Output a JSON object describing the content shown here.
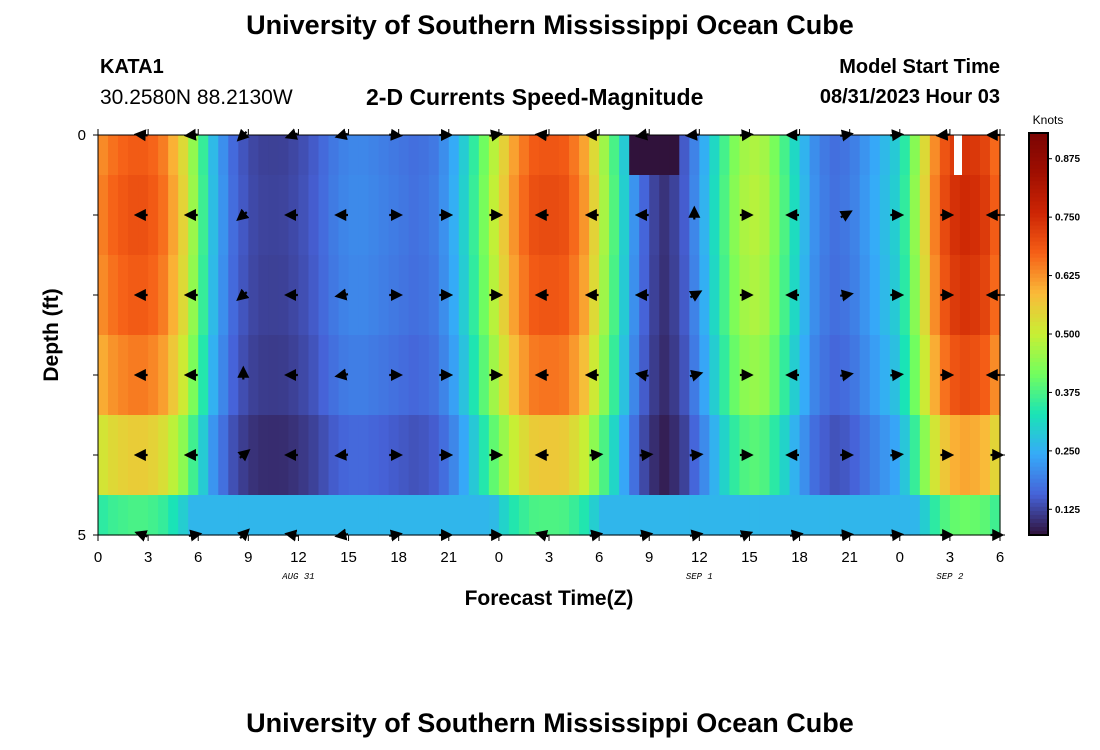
{
  "header": {
    "title": "University of Southern Mississippi Ocean Cube",
    "station": "KATA1",
    "coords": "30.2580N  88.2130W",
    "subtitle": "2-D Currents Speed-Magnitude",
    "model_start_label": "Model Start Time",
    "model_start_value": "08/31/2023 Hour 03",
    "footer_title": "University of Southern Mississippi Ocean Cube"
  },
  "chart_data": {
    "type": "heatmap",
    "title": "2-D Currents Speed-Magnitude",
    "xlabel": "Forecast Time(Z)",
    "ylabel": "Depth (ft)",
    "x_hours": [
      0,
      54
    ],
    "x_tick_labels": [
      "0",
      "3",
      "6",
      "9",
      "12",
      "15",
      "18",
      "21",
      "0",
      "3",
      "6",
      "9",
      "12",
      "15",
      "18",
      "21",
      "0",
      "3",
      "6"
    ],
    "date_labels": [
      {
        "label": "AUG 31",
        "hour": 12
      },
      {
        "label": "SEP 1",
        "hour": 36
      },
      {
        "label": "SEP 2",
        "hour": 51
      }
    ],
    "y_range": [
      0,
      5
    ],
    "y_tick_labels": [
      "0",
      "5"
    ],
    "colorbar": {
      "title": "Knots",
      "range": [
        0.07,
        0.93
      ],
      "ticks": [
        "0.125",
        "0.250",
        "0.375",
        "0.500",
        "0.625",
        "0.750",
        "0.875"
      ],
      "tick_values": [
        0.125,
        0.25,
        0.375,
        0.5,
        0.625,
        0.75,
        0.875
      ]
    },
    "speed_profile_hours": [
      0,
      1,
      2,
      3,
      4,
      5,
      6,
      7,
      8,
      9,
      10,
      11,
      12,
      13,
      14,
      15,
      16,
      17,
      18,
      19,
      20,
      21,
      22,
      23,
      24,
      25,
      26,
      27,
      28,
      29,
      30,
      31,
      32,
      33,
      34,
      35,
      36,
      37,
      38,
      39,
      40,
      41,
      42,
      43,
      44,
      45,
      46,
      47,
      48,
      49,
      50,
      51,
      52,
      53,
      54
    ],
    "speed_profile": [
      0.62,
      0.66,
      0.68,
      0.68,
      0.64,
      0.55,
      0.4,
      0.25,
      0.17,
      0.13,
      0.12,
      0.12,
      0.13,
      0.15,
      0.18,
      0.2,
      0.2,
      0.19,
      0.18,
      0.17,
      0.18,
      0.22,
      0.3,
      0.4,
      0.52,
      0.62,
      0.68,
      0.69,
      0.68,
      0.62,
      0.5,
      0.36,
      0.22,
      0.13,
      0.1,
      0.14,
      0.22,
      0.32,
      0.42,
      0.48,
      0.46,
      0.38,
      0.28,
      0.2,
      0.17,
      0.18,
      0.22,
      0.26,
      0.3,
      0.45,
      0.62,
      0.72,
      0.74,
      0.72,
      0.64
    ],
    "depth_layer_factors": [
      1.0,
      1.02,
      1.0,
      0.95,
      0.82,
      0.55
    ],
    "arrow_hours": [
      2.7,
      5.7,
      8.7,
      11.7,
      14.7,
      17.7,
      20.7,
      23.7,
      26.7,
      29.7,
      32.7,
      35.7,
      38.7,
      41.7,
      44.7,
      47.7,
      50.7,
      53.7
    ],
    "arrow_depths": [
      0,
      1,
      2,
      3,
      4,
      5
    ],
    "arrow_angles_deg": [
      [
        175,
        185,
        225,
        200,
        195,
        355,
        0,
        10,
        175,
        180,
        190,
        185,
        5,
        180,
        10,
        5,
        185,
        180
      ],
      [
        180,
        180,
        220,
        180,
        180,
        0,
        0,
        0,
        180,
        180,
        180,
        90,
        0,
        180,
        30,
        0,
        0,
        180
      ],
      [
        180,
        180,
        220,
        180,
        190,
        0,
        0,
        0,
        180,
        180,
        180,
        30,
        0,
        180,
        10,
        0,
        0,
        180
      ],
      [
        180,
        180,
        90,
        180,
        190,
        0,
        0,
        0,
        180,
        180,
        170,
        15,
        0,
        180,
        10,
        5,
        0,
        180
      ],
      [
        180,
        180,
        40,
        180,
        185,
        0,
        0,
        0,
        180,
        5,
        5,
        5,
        0,
        180,
        0,
        5,
        0,
        0
      ],
      [
        160,
        10,
        45,
        170,
        190,
        10,
        0,
        0,
        165,
        10,
        10,
        10,
        20,
        10,
        5,
        5,
        0,
        0
      ]
    ]
  }
}
